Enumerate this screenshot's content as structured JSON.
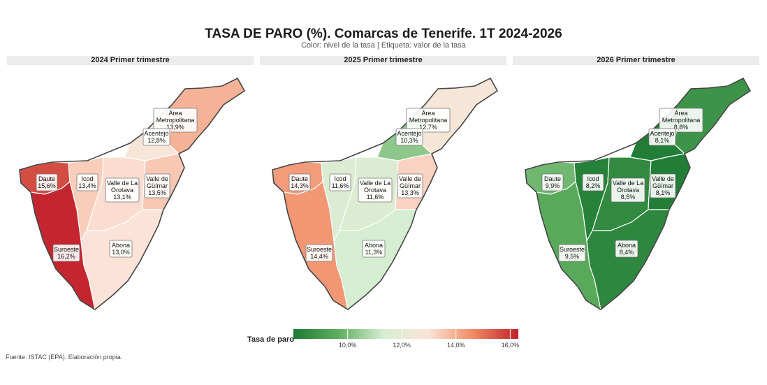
{
  "title": "TASA DE PARO (%). Comarcas de Tenerife. 1T 2024-2026",
  "subtitle": "Color: nivel de la tasa | Etiqueta: valor de la tasa",
  "source": "Fuente: ISTAC (EPA). Elaboración propia.",
  "legend": {
    "title": "Tasa de paro",
    "min": 8.0,
    "max": 16.3,
    "ticks": [
      {
        "value": 10.0,
        "label": "10,0%"
      },
      {
        "value": 12.0,
        "label": "12,0%"
      },
      {
        "value": 14.0,
        "label": "14,0%"
      },
      {
        "value": 16.0,
        "label": "16,0%"
      }
    ],
    "colors": [
      "#1e7b34",
      "#5fae5f",
      "#d6eed2",
      "#fbe4d8",
      "#f08a63",
      "#c0202c"
    ]
  },
  "panels": [
    {
      "title": "2024 Primer trimestre",
      "regions": [
        {
          "name": "Área Metropolitana",
          "value": 13.9,
          "label": "13,9%"
        },
        {
          "name": "Acentejo",
          "value": 12.8,
          "label": "12,8%"
        },
        {
          "name": "Daute",
          "value": 15.6,
          "label": "15,6%"
        },
        {
          "name": "Icod",
          "value": 13.4,
          "label": "13,4%"
        },
        {
          "name": "Valle de La Orotava",
          "value": 13.1,
          "label": "13,1%"
        },
        {
          "name": "Valle de Güímar",
          "value": 13.5,
          "label": "13,5%"
        },
        {
          "name": "Suroeste",
          "value": 16.2,
          "label": "16,2%"
        },
        {
          "name": "Abona",
          "value": 13.0,
          "label": "13,0%"
        }
      ]
    },
    {
      "title": "2025 Primer trimestre",
      "regions": [
        {
          "name": "Área Metropolitana",
          "value": 12.7,
          "label": "12,7%"
        },
        {
          "name": "Acentejo",
          "value": 10.3,
          "label": "10,3%"
        },
        {
          "name": "Daute",
          "value": 14.3,
          "label": "14,3%"
        },
        {
          "name": "Icod",
          "value": 11.6,
          "label": "11,6%"
        },
        {
          "name": "Valle de La Orotava",
          "value": 11.6,
          "label": "11,6%"
        },
        {
          "name": "Valle de Güímar",
          "value": 13.3,
          "label": "13,3%"
        },
        {
          "name": "Suroeste",
          "value": 14.4,
          "label": "14,4%"
        },
        {
          "name": "Abona",
          "value": 11.3,
          "label": "11,3%"
        }
      ]
    },
    {
      "title": "2026 Primer trimestre",
      "regions": [
        {
          "name": "Área Metropolitana",
          "value": 8.8,
          "label": "8,8%"
        },
        {
          "name": "Acentejo",
          "value": 8.1,
          "label": "8,1%"
        },
        {
          "name": "Daute",
          "value": 9.9,
          "label": "9,9%"
        },
        {
          "name": "Icod",
          "value": 8.2,
          "label": "8,2%"
        },
        {
          "name": "Valle de La Orotava",
          "value": 8.5,
          "label": "8,5%"
        },
        {
          "name": "Valle de Güímar",
          "value": 8.1,
          "label": "8,1%"
        },
        {
          "name": "Suroeste",
          "value": 9.5,
          "label": "9,5%"
        },
        {
          "name": "Abona",
          "value": 8.4,
          "label": "8,4%"
        }
      ]
    }
  ]
}
